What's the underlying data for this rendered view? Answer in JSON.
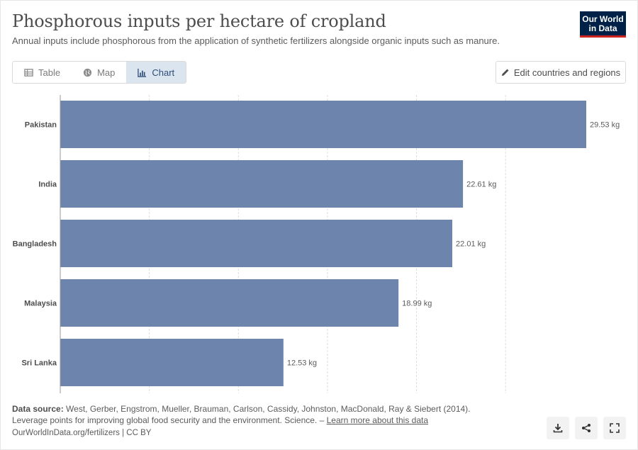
{
  "header": {
    "title": "Phosphorous inputs per hectare of cropland",
    "subtitle": "Annual inputs include phosphorous from the application of synthetic fertilizers alongside organic inputs such as manure.",
    "logo_line1": "Our World",
    "logo_line2": "in Data"
  },
  "tabs": [
    {
      "label": "Table",
      "icon": "table-icon",
      "active": false
    },
    {
      "label": "Map",
      "icon": "globe-icon",
      "active": false
    },
    {
      "label": "Chart",
      "icon": "chart-icon",
      "active": true
    }
  ],
  "edit_button": {
    "label": "Edit countries and regions",
    "icon": "pencil-icon"
  },
  "chart_data": {
    "type": "bar",
    "orientation": "horizontal",
    "categories": [
      "Pakistan",
      "India",
      "Bangladesh",
      "Malaysia",
      "Sri Lanka"
    ],
    "values": [
      29.53,
      22.61,
      22.01,
      18.99,
      12.53
    ],
    "value_labels": [
      "29.53 kg",
      "22.61 kg",
      "22.01 kg",
      "18.99 kg",
      "12.53 kg"
    ],
    "unit": "kg",
    "xlim": [
      0,
      29.53
    ],
    "gridlines": [
      0,
      5,
      10,
      15,
      20,
      25
    ],
    "grid": true,
    "bar_color": "#6d85ac"
  },
  "footer": {
    "source_label": "Data source:",
    "source_text": " West, Gerber, Engstrom, Mueller, Brauman, Carlson, Cassidy, Johnston, MacDonald, Ray & Siebert (2014).",
    "source_text2": "Leverage points for improving global food security and the environment. Science. – ",
    "learn_more": "Learn more about this data",
    "url": "OurWorldInData.org/fertilizers | CC BY"
  },
  "actions": [
    {
      "name": "download-icon"
    },
    {
      "name": "share-icon"
    },
    {
      "name": "fullscreen-icon"
    }
  ]
}
